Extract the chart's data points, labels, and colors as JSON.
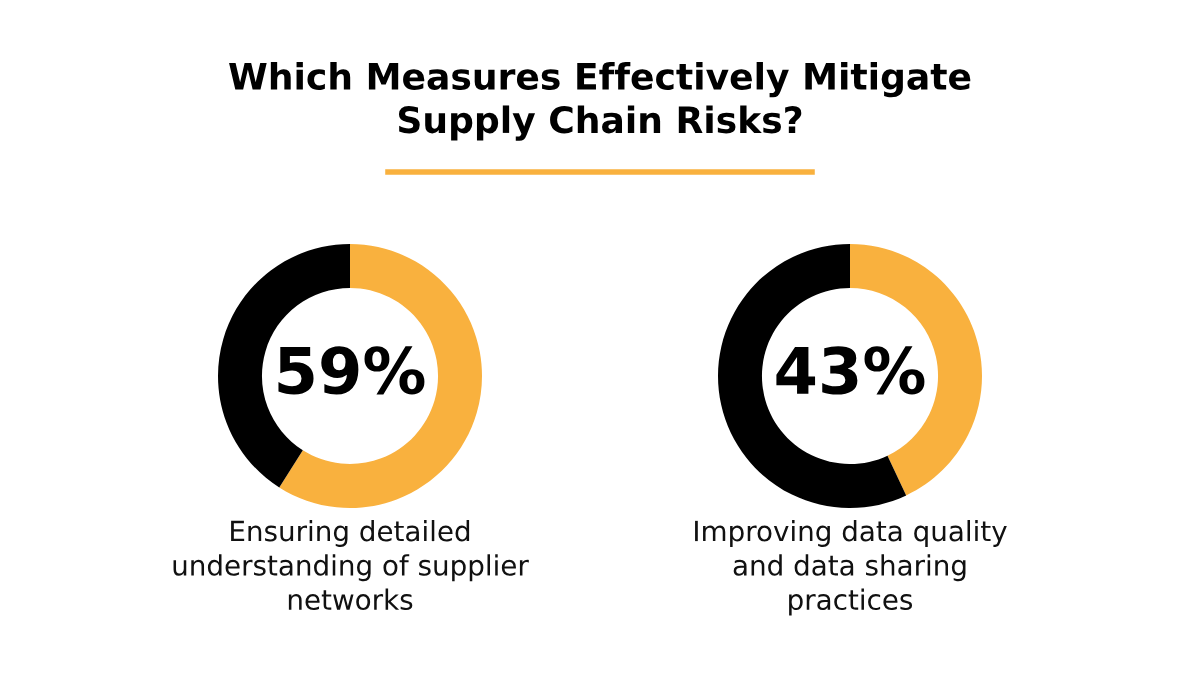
{
  "chart_data": [
    {
      "type": "donut",
      "title": "Which Measures Effectively Mitigate\nSupply Chain Risks?",
      "categories": [
        null,
        null
      ],
      "values": [
        59,
        41
      ],
      "colors": [
        "#f9b13e",
        "#000000"
      ],
      "value_labels": [
        "59%",
        null
      ],
      "xlabel": "Ensuring detailed\nunderstanding of supplier\nnetworks"
    },
    {
      "type": "donut",
      "categories": [
        null,
        null
      ],
      "values": [
        43,
        57
      ],
      "colors": [
        "#f9b13e",
        "#000000"
      ],
      "value_labels": [
        "43%",
        null
      ],
      "xlabel": "Improving data quality\nand data sharing\npractices"
    }
  ]
}
